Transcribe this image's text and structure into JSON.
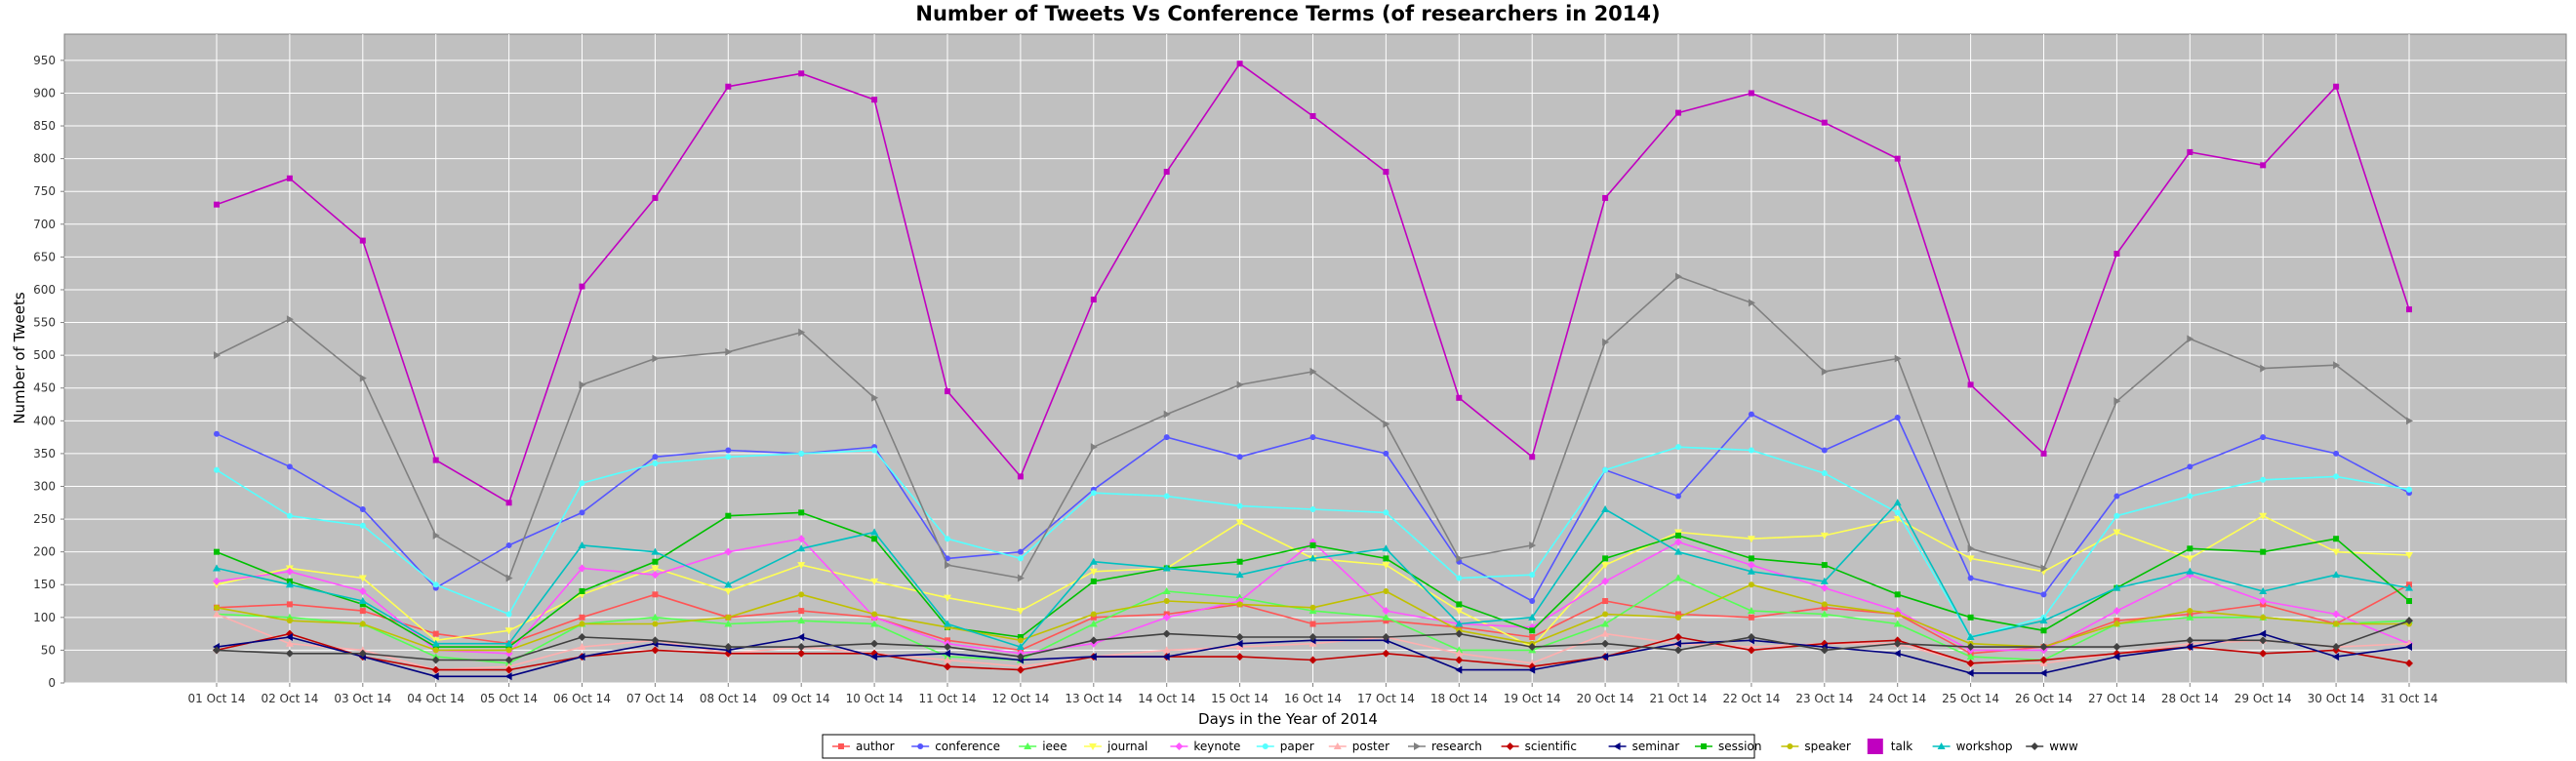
{
  "chart_data": {
    "type": "line",
    "title": "Number of Tweets Vs Conference Terms (of researchers in 2014)",
    "xlabel": "Days in the Year of 2014",
    "ylabel": "Number of Tweets",
    "ylim": [
      0,
      990
    ],
    "yticks": [
      0,
      50,
      100,
      150,
      200,
      250,
      300,
      350,
      400,
      450,
      500,
      550,
      600,
      650,
      700,
      750,
      800,
      850,
      900,
      950
    ],
    "grid": true,
    "legend": "bottom",
    "categories": [
      "01 Oct 14",
      "02 Oct 14",
      "03 Oct 14",
      "04 Oct 14",
      "05 Oct 14",
      "06 Oct 14",
      "07 Oct 14",
      "08 Oct 14",
      "09 Oct 14",
      "10 Oct 14",
      "11 Oct 14",
      "12 Oct 14",
      "13 Oct 14",
      "14 Oct 14",
      "15 Oct 14",
      "16 Oct 14",
      "17 Oct 14",
      "18 Oct 14",
      "19 Oct 14",
      "20 Oct 14",
      "21 Oct 14",
      "22 Oct 14",
      "23 Oct 14",
      "24 Oct 14",
      "25 Oct 14",
      "26 Oct 14",
      "27 Oct 14",
      "28 Oct 14",
      "29 Oct 14",
      "30 Oct 14",
      "31 Oct 14"
    ],
    "series": [
      {
        "name": "author",
        "color": "#ff5555",
        "marker": "square",
        "values": [
          115,
          120,
          110,
          75,
          60,
          100,
          135,
          100,
          110,
          100,
          65,
          50,
          100,
          105,
          120,
          90,
          95,
          85,
          70,
          125,
          105,
          100,
          115,
          105,
          45,
          55,
          95,
          105,
          120,
          90,
          150
        ]
      },
      {
        "name": "conference",
        "color": "#5555ff",
        "marker": "circle",
        "values": [
          380,
          330,
          265,
          145,
          210,
          260,
          345,
          355,
          350,
          360,
          190,
          200,
          295,
          375,
          345,
          375,
          350,
          185,
          125,
          325,
          285,
          410,
          355,
          405,
          160,
          135,
          285,
          330,
          375,
          350,
          290
        ]
      },
      {
        "name": "ieee",
        "color": "#55ff55",
        "marker": "triangle-up",
        "values": [
          105,
          100,
          90,
          40,
          30,
          90,
          100,
          90,
          95,
          90,
          40,
          35,
          90,
          140,
          130,
          110,
          100,
          50,
          50,
          90,
          160,
          110,
          105,
          90,
          40,
          35,
          90,
          100,
          100,
          90,
          95
        ]
      },
      {
        "name": "journal",
        "color": "#ffff55",
        "marker": "triangle-down",
        "values": [
          150,
          175,
          160,
          65,
          80,
          135,
          175,
          140,
          180,
          155,
          130,
          110,
          170,
          175,
          245,
          190,
          180,
          110,
          55,
          180,
          230,
          220,
          225,
          250,
          190,
          170,
          230,
          190,
          255,
          200,
          195
        ]
      },
      {
        "name": "keynote",
        "color": "#ff55ff",
        "marker": "diamond",
        "values": [
          155,
          170,
          140,
          50,
          45,
          175,
          165,
          200,
          220,
          100,
          60,
          45,
          60,
          100,
          125,
          215,
          110,
          90,
          85,
          155,
          215,
          180,
          145,
          110,
          50,
          50,
          110,
          165,
          125,
          105,
          60
        ]
      },
      {
        "name": "paper",
        "color": "#55ffff",
        "marker": "circle",
        "values": [
          325,
          255,
          240,
          150,
          105,
          305,
          335,
          345,
          350,
          355,
          220,
          190,
          290,
          285,
          270,
          265,
          260,
          160,
          165,
          325,
          360,
          355,
          320,
          260,
          70,
          100,
          255,
          285,
          310,
          315,
          295
        ]
      },
      {
        "name": "poster",
        "color": "#ffafaf",
        "marker": "triangle-up",
        "values": [
          105,
          60,
          50,
          20,
          25,
          55,
          65,
          45,
          55,
          45,
          35,
          25,
          40,
          50,
          55,
          60,
          70,
          45,
          30,
          75,
          60,
          55,
          60,
          60,
          30,
          30,
          45,
          60,
          65,
          55,
          60
        ]
      },
      {
        "name": "research",
        "color": "#808080",
        "marker": "triangle-right",
        "values": [
          500,
          555,
          465,
          225,
          160,
          455,
          495,
          505,
          535,
          435,
          180,
          160,
          360,
          410,
          455,
          475,
          395,
          190,
          210,
          520,
          620,
          580,
          475,
          495,
          205,
          175,
          430,
          525,
          480,
          485,
          400
        ]
      },
      {
        "name": "scientific",
        "color": "#c00000",
        "marker": "diamond",
        "values": [
          50,
          75,
          40,
          20,
          20,
          40,
          50,
          45,
          45,
          45,
          25,
          20,
          40,
          40,
          40,
          35,
          45,
          35,
          25,
          40,
          70,
          50,
          60,
          65,
          30,
          35,
          45,
          55,
          45,
          50,
          30
        ]
      },
      {
        "name": "seminar",
        "color": "#000080",
        "marker": "triangle-left",
        "values": [
          55,
          70,
          40,
          10,
          10,
          40,
          60,
          50,
          70,
          40,
          45,
          35,
          40,
          40,
          60,
          65,
          65,
          20,
          20,
          40,
          60,
          65,
          55,
          45,
          15,
          15,
          40,
          55,
          75,
          40,
          55
        ]
      },
      {
        "name": "session",
        "color": "#00c000",
        "marker": "square",
        "values": [
          200,
          155,
          120,
          55,
          55,
          140,
          185,
          255,
          260,
          220,
          85,
          70,
          155,
          175,
          185,
          210,
          190,
          120,
          80,
          190,
          225,
          190,
          180,
          135,
          100,
          80,
          145,
          205,
          200,
          220,
          125
        ]
      },
      {
        "name": "speaker",
        "color": "#c0c000",
        "marker": "circle",
        "values": [
          115,
          95,
          90,
          50,
          50,
          90,
          90,
          100,
          135,
          105,
          85,
          65,
          105,
          125,
          120,
          115,
          140,
          80,
          60,
          105,
          100,
          150,
          120,
          105,
          60,
          55,
          90,
          110,
          100,
          90,
          90
        ]
      },
      {
        "name": "talk",
        "color": "#c000c0",
        "marker": "square",
        "values": [
          730,
          770,
          675,
          340,
          275,
          605,
          740,
          910,
          930,
          890,
          445,
          315,
          585,
          780,
          945,
          865,
          780,
          435,
          345,
          740,
          870,
          900,
          855,
          800,
          455,
          350,
          655,
          810,
          790,
          910,
          570
        ]
      },
      {
        "name": "workshop",
        "color": "#00c0c0",
        "marker": "triangle-up",
        "values": [
          175,
          150,
          125,
          60,
          60,
          210,
          200,
          150,
          205,
          230,
          90,
          55,
          185,
          175,
          165,
          190,
          205,
          90,
          100,
          265,
          200,
          170,
          155,
          275,
          70,
          95,
          145,
          170,
          140,
          165,
          145
        ]
      },
      {
        "name": "www",
        "color": "#404040",
        "marker": "diamond",
        "values": [
          50,
          45,
          45,
          35,
          35,
          70,
          65,
          55,
          55,
          60,
          55,
          40,
          65,
          75,
          70,
          70,
          70,
          75,
          55,
          60,
          50,
          70,
          50,
          60,
          55,
          55,
          55,
          65,
          65,
          55,
          95
        ]
      }
    ]
  }
}
